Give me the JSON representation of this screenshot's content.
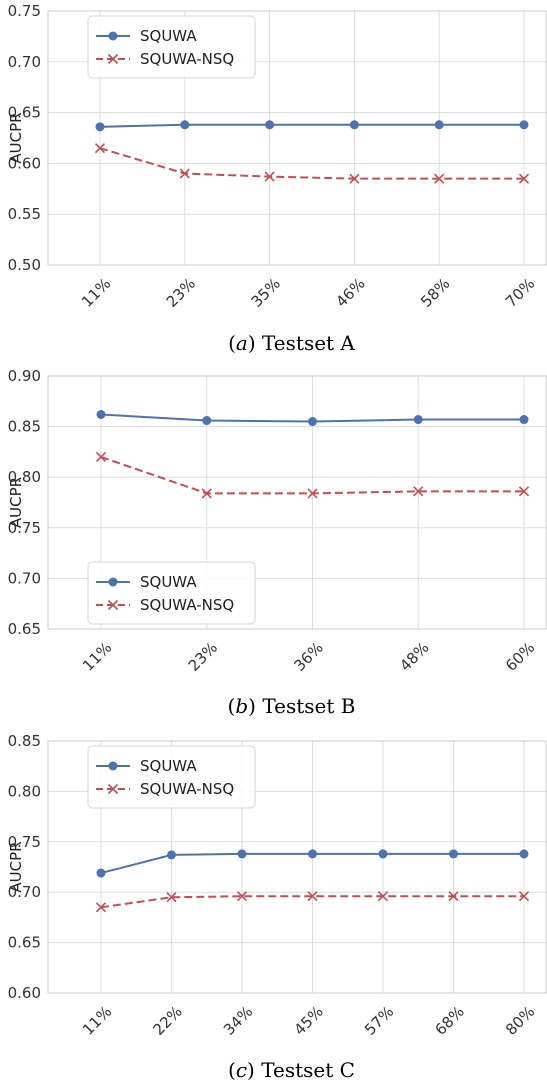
{
  "chart_data": [
    {
      "type": "line",
      "caption_letter": "a",
      "caption_text": "Testset A",
      "categories": [
        "11%",
        "23%",
        "35%",
        "46%",
        "58%",
        "70%"
      ],
      "ylabel": "AUCPR",
      "ylim": [
        0.5,
        0.75
      ],
      "yticks": [
        "0.50",
        "0.55",
        "0.60",
        "0.65",
        "0.70",
        "0.75"
      ],
      "grid": true,
      "legend_position": "upper-left",
      "series": [
        {
          "name": "SQUWA",
          "values": [
            0.636,
            0.638,
            0.638,
            0.638,
            0.638,
            0.638
          ],
          "color": "#4c72b0",
          "marker": "circle",
          "dash": "solid"
        },
        {
          "name": "SQUWA-NSQ",
          "values": [
            0.615,
            0.59,
            0.587,
            0.585,
            0.585,
            0.585
          ],
          "color": "#c44e52",
          "marker": "x",
          "dash": "dashed"
        }
      ]
    },
    {
      "type": "line",
      "caption_letter": "b",
      "caption_text": "Testset B",
      "categories": [
        "11%",
        "23%",
        "36%",
        "48%",
        "60%"
      ],
      "ylabel": "AUCPR",
      "ylim": [
        0.65,
        0.9
      ],
      "yticks": [
        "0.65",
        "0.70",
        "0.75",
        "0.80",
        "0.85",
        "0.90"
      ],
      "grid": true,
      "legend_position": "lower-left",
      "series": [
        {
          "name": "SQUWA",
          "values": [
            0.862,
            0.856,
            0.855,
            0.857,
            0.857
          ],
          "color": "#4c72b0",
          "marker": "circle",
          "dash": "solid"
        },
        {
          "name": "SQUWA-NSQ",
          "values": [
            0.82,
            0.784,
            0.784,
            0.786,
            0.786
          ],
          "color": "#c44e52",
          "marker": "x",
          "dash": "dashed"
        }
      ]
    },
    {
      "type": "line",
      "caption_letter": "c",
      "caption_text": "Testset C",
      "categories": [
        "11%",
        "22%",
        "34%",
        "45%",
        "57%",
        "68%",
        "80%"
      ],
      "ylabel": "AUCPR",
      "ylim": [
        0.6,
        0.85
      ],
      "yticks": [
        "0.60",
        "0.65",
        "0.70",
        "0.75",
        "0.80",
        "0.85"
      ],
      "grid": true,
      "legend_position": "upper-left",
      "series": [
        {
          "name": "SQUWA",
          "values": [
            0.719,
            0.737,
            0.738,
            0.738,
            0.738,
            0.738,
            0.738
          ],
          "color": "#4c72b0",
          "marker": "circle",
          "dash": "solid"
        },
        {
          "name": "SQUWA-NSQ",
          "values": [
            0.685,
            0.695,
            0.696,
            0.696,
            0.696,
            0.696,
            0.696
          ],
          "color": "#c44e52",
          "marker": "x",
          "dash": "dashed"
        }
      ]
    }
  ]
}
